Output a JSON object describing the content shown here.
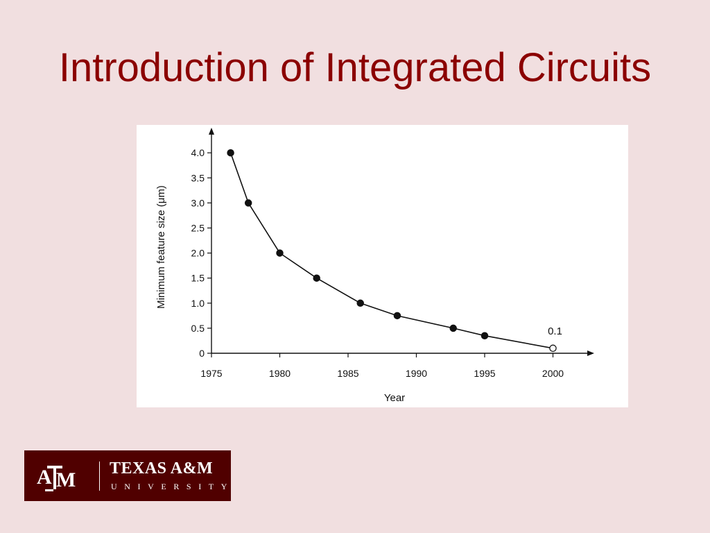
{
  "slide": {
    "title": "Introduction of Integrated Circuits"
  },
  "logo": {
    "name": "TEXAS A&M",
    "sub": "UNIVERSITY",
    "background": "#500000",
    "icon": "atm-monogram-icon"
  },
  "colors": {
    "title": "#8b0000",
    "background": "#f1dfe0"
  },
  "chart_data": {
    "type": "line",
    "xlabel": "Year",
    "ylabel": "Minimum feature size  (μm)",
    "xlim": [
      1975,
      2003
    ],
    "ylim": [
      0,
      4.3
    ],
    "x_ticks": [
      1975,
      1980,
      1985,
      1990,
      1995,
      2000
    ],
    "y_ticks": [
      0,
      0.5,
      1.0,
      1.5,
      2.0,
      2.5,
      3.0,
      3.5,
      4.0
    ],
    "y_tick_labels": [
      "0",
      "0.5",
      "1.0",
      "1.5",
      "2.0",
      "2.5",
      "3.0",
      "3.5",
      "4.0"
    ],
    "grid": false,
    "legend": "none",
    "series": [
      {
        "points": [
          {
            "x": 1976.4,
            "y": 4.0,
            "marker": "filled"
          },
          {
            "x": 1977.7,
            "y": 3.0,
            "marker": "filled"
          },
          {
            "x": 1980.0,
            "y": 2.0,
            "marker": "filled"
          },
          {
            "x": 1982.7,
            "y": 1.5,
            "marker": "filled"
          },
          {
            "x": 1985.9,
            "y": 1.0,
            "marker": "filled"
          },
          {
            "x": 1988.6,
            "y": 0.75,
            "marker": "filled"
          },
          {
            "x": 1992.7,
            "y": 0.5,
            "marker": "filled"
          },
          {
            "x": 1995.0,
            "y": 0.35,
            "marker": "filled"
          },
          {
            "x": 2000.0,
            "y": 0.1,
            "marker": "open"
          }
        ]
      }
    ],
    "annotations": [
      {
        "text": "0.1",
        "x": 2000.0,
        "y": 0.1
      }
    ]
  }
}
